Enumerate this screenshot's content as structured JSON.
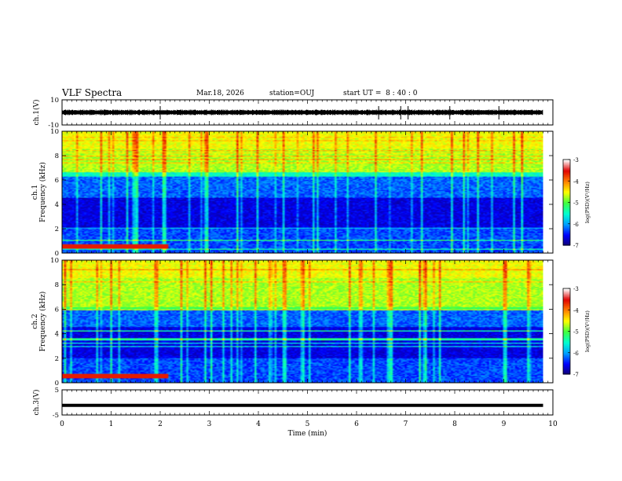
{
  "header": {
    "title": "VLF Spectra",
    "date": "Mar.18, 2026",
    "station": "station=OUJ",
    "start_ut": "start UT =  8 : 40 : 0"
  },
  "chart_data": [
    {
      "type": "line",
      "panel": "ch1-waveform",
      "ylabel": "ch.1(V)",
      "ylim": [
        -10,
        10
      ],
      "ytick_labels": [
        "-10",
        "10"
      ],
      "x": [
        0,
        0.5,
        1,
        1.5,
        2,
        2.5,
        3,
        3.5,
        4,
        4.5,
        5,
        5.5,
        6,
        6.5,
        7,
        7.5,
        8,
        8.5,
        9,
        9.5,
        9.8
      ],
      "y": [
        0,
        0,
        0,
        0,
        0,
        0,
        0,
        0,
        0,
        0,
        0,
        0,
        0,
        0,
        0,
        0,
        0,
        0,
        0,
        0,
        0
      ],
      "color": "#000000"
    },
    {
      "type": "heatmap",
      "panel": "ch1-spectrogram",
      "ylabel": "ch.1 Frequency (kHz)",
      "ylim": [
        0,
        10
      ],
      "xlim": [
        0,
        10
      ],
      "ytick_labels": [
        "0",
        "2",
        "4",
        "6",
        "8",
        "10"
      ],
      "data_xmax": 9.8,
      "colorbar": {
        "label": "log(PSD)(V²/Hz)",
        "range": [
          -7,
          -3
        ],
        "tick_labels": [
          "-3",
          "-4",
          "-5",
          "-6",
          "-7"
        ]
      }
    },
    {
      "type": "heatmap",
      "panel": "ch2-spectrogram",
      "ylabel": "ch.2 Frequency (kHz)",
      "ylim": [
        0,
        10
      ],
      "xlim": [
        0,
        10
      ],
      "ytick_labels": [
        "0",
        "2",
        "4",
        "6",
        "8",
        "10"
      ],
      "data_xmax": 9.8,
      "colorbar": {
        "label": "log(PSD)(V²/Hz)",
        "range": [
          -7,
          -3
        ],
        "tick_labels": [
          "-3",
          "-4",
          "-5",
          "-6",
          "-7"
        ]
      }
    },
    {
      "type": "line",
      "panel": "ch3-waveform",
      "ylabel": "ch.3(V)",
      "ylim": [
        -5,
        5
      ],
      "ytick_labels": [
        "-5",
        "5"
      ],
      "x": [
        0,
        9.8
      ],
      "y": [
        -1.2,
        -1.2
      ],
      "color": "#000000"
    }
  ],
  "xaxis": {
    "label": "Time (min)",
    "range": [
      0,
      10
    ],
    "tick_labels": [
      "0",
      "1",
      "2",
      "3",
      "4",
      "5",
      "6",
      "7",
      "8",
      "9",
      "10"
    ]
  },
  "colors": {
    "background": "#ffffff",
    "axis": "#000000",
    "colormap": [
      "#100070",
      "#0000ff",
      "#00a0ff",
      "#00ffd0",
      "#40ff40",
      "#ffff00",
      "#ff8000",
      "#e00000",
      "#ffffff"
    ]
  }
}
